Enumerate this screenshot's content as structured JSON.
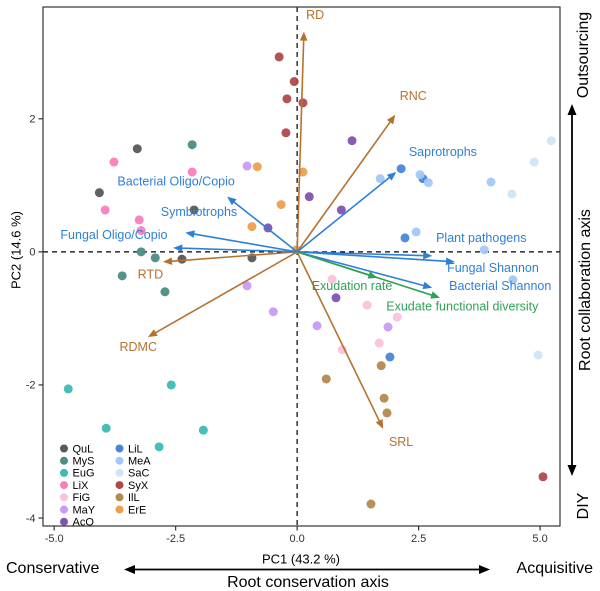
{
  "figure": {
    "x_axis_title": "PC1 (43.2 %)",
    "y_axis_title": "PC2 (14.6 %)",
    "bottom_annotation": {
      "left": "Conservative",
      "right": "Acquisitive",
      "axis_label": "Root conservation axis"
    },
    "right_annotation": {
      "top": "Outsourcing",
      "bottom": "DIY",
      "axis_label": "Root collaboration axis"
    }
  },
  "chart_data": {
    "type": "scatter",
    "subtype": "pca-biplot",
    "xlabel": "PC1 (43.2 %)",
    "ylabel": "PC2 (14.6 %)",
    "xlim": [
      -5.23,
      5.41
    ],
    "ylim": [
      -4.12,
      3.68
    ],
    "grid": false,
    "zero_lines_dashed": true,
    "legend_position": "bottom-left",
    "x_ticks": [
      {
        "v": -5,
        "label": "-5.0"
      },
      {
        "v": -2.5,
        "label": "-2.5"
      },
      {
        "v": 0,
        "label": "0.0"
      },
      {
        "v": 2.5,
        "label": "2.5"
      },
      {
        "v": 5,
        "label": "5.0"
      }
    ],
    "y_ticks": [
      {
        "v": 2,
        "label": "2"
      },
      {
        "v": 0,
        "label": "0"
      },
      {
        "v": -2,
        "label": "-2"
      },
      {
        "v": -4,
        "label": "-4"
      }
    ],
    "series": [
      {
        "name": "QuL",
        "color": "#595959",
        "points": [
          [
            -3.29,
            1.55
          ],
          [
            -4.07,
            0.89
          ],
          [
            -2.12,
            0.63
          ],
          [
            -2.37,
            -0.11
          ],
          [
            -0.93,
            -0.09
          ]
        ]
      },
      {
        "name": "MyS",
        "color": "#4b8c84",
        "points": [
          [
            -2.16,
            1.61
          ],
          [
            -3.21,
            0.0
          ],
          [
            -2.92,
            -0.09
          ],
          [
            -3.6,
            -0.36
          ],
          [
            -2.72,
            -0.6
          ]
        ]
      },
      {
        "name": "EuG",
        "color": "#3cbcb4",
        "points": [
          [
            -4.71,
            -2.06
          ],
          [
            -2.59,
            -2.0
          ],
          [
            -3.93,
            -2.65
          ],
          [
            -1.93,
            -2.68
          ],
          [
            -2.84,
            -2.93
          ]
        ]
      },
      {
        "name": "LiX",
        "color": "#f77fbe",
        "points": [
          [
            -3.77,
            1.35
          ],
          [
            -2.16,
            1.2
          ],
          [
            -3.95,
            0.63
          ],
          [
            -3.25,
            0.48
          ],
          [
            -3.21,
            0.32
          ]
        ]
      },
      {
        "name": "FiG",
        "color": "#f9c3dc",
        "points": [
          [
            0.72,
            -0.41
          ],
          [
            1.44,
            -0.8
          ],
          [
            2.06,
            -0.98
          ],
          [
            1.69,
            -1.37
          ],
          [
            0.93,
            -1.47
          ]
        ]
      },
      {
        "name": "MaY",
        "color": "#c89bf7",
        "points": [
          [
            -1.03,
            1.29
          ],
          [
            -1.03,
            -0.51
          ],
          [
            -0.49,
            -0.9
          ],
          [
            0.41,
            -1.11
          ],
          [
            1.87,
            -1.13
          ]
        ]
      },
      {
        "name": "AcO",
        "color": "#8452b0",
        "points": [
          [
            1.13,
            1.67
          ],
          [
            0.25,
            0.83
          ],
          [
            0.91,
            0.63
          ],
          [
            -0.6,
            0.36
          ],
          [
            0.8,
            -0.69
          ]
        ]
      },
      {
        "name": "LiL",
        "color": "#4a86d8",
        "points": [
          [
            2.14,
            1.25
          ],
          [
            2.59,
            1.1
          ],
          [
            2.22,
            0.21
          ],
          [
            1.91,
            -1.58
          ]
        ]
      },
      {
        "name": "MeA",
        "color": "#a4c8f5",
        "points": [
          [
            1.71,
            1.1
          ],
          [
            2.53,
            1.16
          ],
          [
            2.7,
            1.04
          ],
          [
            3.99,
            1.05
          ],
          [
            2.45,
            0.3
          ],
          [
            3.85,
            0.03
          ],
          [
            4.44,
            -0.42
          ]
        ]
      },
      {
        "name": "SaC",
        "color": "#d0e4f9",
        "points": [
          [
            4.88,
            1.35
          ],
          [
            5.23,
            1.67
          ],
          [
            4.42,
            0.87
          ],
          [
            4.96,
            -1.55
          ]
        ]
      },
      {
        "name": "SyX",
        "color": "#b04a4a",
        "points": [
          [
            -0.37,
            2.93
          ],
          [
            -0.06,
            2.56
          ],
          [
            -0.21,
            2.3
          ],
          [
            0.12,
            2.24
          ],
          [
            -0.23,
            1.79
          ],
          [
            5.06,
            -3.38
          ]
        ]
      },
      {
        "name": "IlL",
        "color": "#b38a50",
        "points": [
          [
            0.6,
            -1.91
          ],
          [
            1.73,
            -1.71
          ],
          [
            1.79,
            -2.2
          ],
          [
            1.85,
            -2.42
          ],
          [
            1.52,
            -3.79
          ]
        ]
      },
      {
        "name": "ErE",
        "color": "#eca04f",
        "points": [
          [
            -0.82,
            1.28
          ],
          [
            0.12,
            1.2
          ],
          [
            -0.33,
            0.71
          ],
          [
            -0.93,
            0.38
          ],
          [
            -0.02,
            0.03
          ]
        ]
      }
    ],
    "legend_columns": [
      7,
      6
    ],
    "arrow_groups": {
      "root_trait": "#b5722f",
      "microbial": "#2e7fd8",
      "exudate": "#2fa157"
    },
    "loadings": [
      {
        "label": "RD",
        "group": "root_trait",
        "x": 0.14,
        "y": 3.31,
        "lx": 0.37,
        "ly": 3.5
      },
      {
        "label": "RNC",
        "group": "root_trait",
        "x": 2.02,
        "y": 2.06,
        "lx": 2.39,
        "ly": 2.28
      },
      {
        "label": "RTD",
        "group": "root_trait",
        "x": -2.76,
        "y": -0.15,
        "lx": -3.02,
        "ly": -0.4
      },
      {
        "label": "RDMC",
        "group": "root_trait",
        "x": -3.07,
        "y": -1.28,
        "lx": -3.27,
        "ly": -1.49
      },
      {
        "label": "SRL",
        "group": "root_trait",
        "x": 1.77,
        "y": -2.66,
        "lx": 2.14,
        "ly": -2.92
      },
      {
        "label": "Saprotrophs",
        "group": "microbial",
        "x": 2.04,
        "y": 1.2,
        "lx": 3.0,
        "ly": 1.44
      },
      {
        "label": "Bacterial Oligo/Copio",
        "group": "microbial",
        "x": -1.44,
        "y": 0.83,
        "lx": -2.49,
        "ly": 1.0
      },
      {
        "label": "Symbiotrophs",
        "group": "microbial",
        "x": -2.3,
        "y": 0.29,
        "lx": -2.02,
        "ly": 0.54
      },
      {
        "label": "Fungal Oligo/Copio",
        "group": "microbial",
        "x": -2.55,
        "y": 0.06,
        "lx": -3.77,
        "ly": 0.19
      },
      {
        "label": "Plant pathogens",
        "group": "microbial",
        "x": 2.78,
        "y": -0.06,
        "lx": 3.79,
        "ly": 0.15
      },
      {
        "label": "Fungal Shannon",
        "group": "microbial",
        "x": 3.25,
        "y": -0.15,
        "lx": 4.03,
        "ly": -0.3
      },
      {
        "label": "Bacterial Shannon",
        "group": "microbial",
        "x": 2.78,
        "y": -0.54,
        "lx": 4.18,
        "ly": -0.57
      },
      {
        "label": "Exudation rate",
        "group": "exudate",
        "x": 1.65,
        "y": -0.39,
        "lx": 1.13,
        "ly": -0.57
      },
      {
        "label": "Exudate functional diversity",
        "group": "exudate",
        "x": 2.94,
        "y": -0.69,
        "lx": 3.4,
        "ly": -0.88
      }
    ]
  }
}
